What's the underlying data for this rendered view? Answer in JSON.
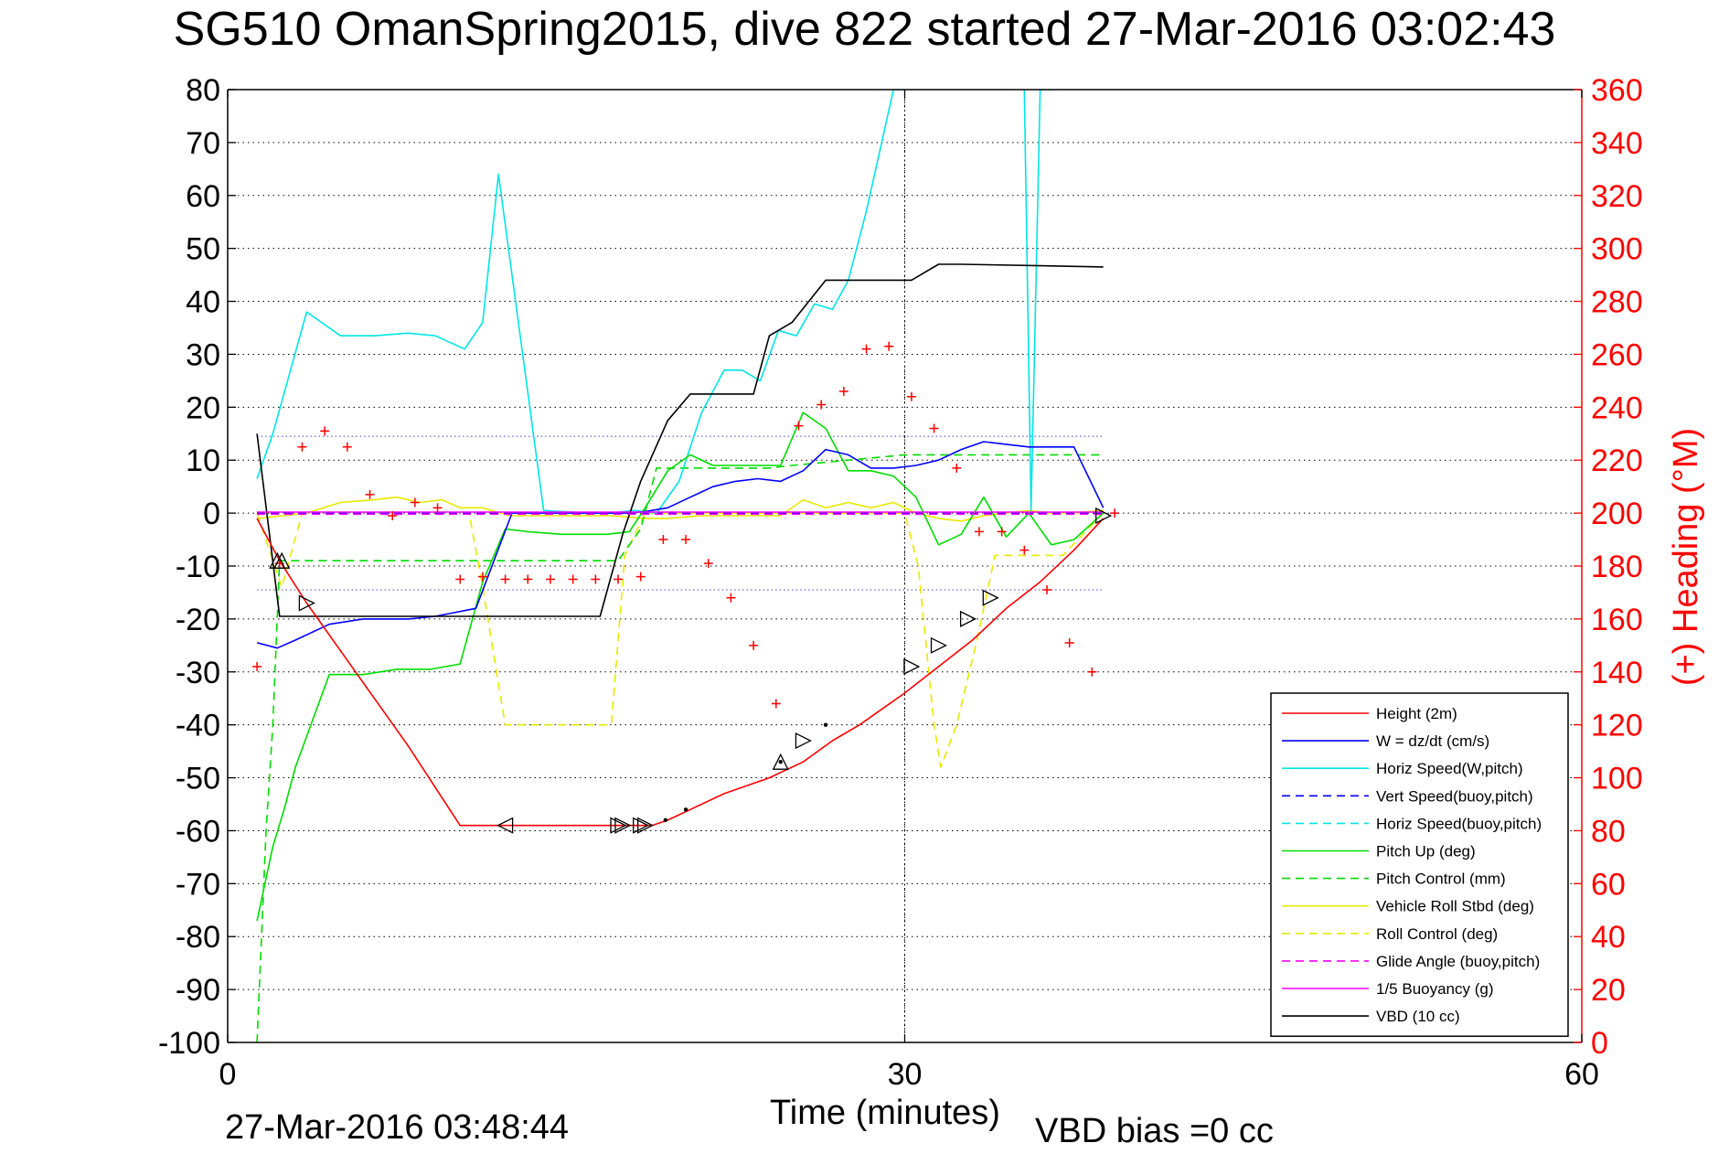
{
  "title": "SG510 OmanSpring2015, dive 822 started 27-Mar-2016 03:02:43",
  "footer": {
    "timestamp": "27-Mar-2016 03:48:44",
    "vbd_bias": "VBD bias =0 cc"
  },
  "chart_data": {
    "type": "line",
    "xlabel": "Time (minutes)",
    "ylabel": "",
    "y2label": "(+) Heading (°M)",
    "xlim": [
      0,
      60
    ],
    "ylim": [
      -100,
      80
    ],
    "y2lim": [
      0,
      360
    ],
    "xticks": [
      0,
      30,
      60
    ],
    "yticks": [
      -100,
      -90,
      -80,
      -70,
      -60,
      -50,
      -40,
      -30,
      -20,
      -10,
      0,
      10,
      20,
      30,
      40,
      50,
      60,
      70,
      80
    ],
    "y2ticks": [
      0,
      20,
      40,
      60,
      80,
      100,
      120,
      140,
      160,
      180,
      200,
      220,
      240,
      260,
      280,
      300,
      320,
      340,
      360
    ],
    "grid": true,
    "legend_position": "bottom-right",
    "colors": {
      "axes": "#000000",
      "right_axis": "#ff0000",
      "height": "#ff0000",
      "w": "#0000ff",
      "horiz_speed": "#00e5e5",
      "vert_speed_buoy": "#0000ff",
      "horiz_speed_buoy": "#00e5e5",
      "pitch_up": "#00dd00",
      "pitch_control": "#00dd00",
      "roll": "#e8e800",
      "roll_control": "#e8e800",
      "glide_angle": "#ff00ff",
      "buoyancy": "#ff00ff",
      "vbd": "#000000",
      "reference_lines": "#5555dd",
      "heading_markers": "#ff0000"
    },
    "series": [
      {
        "name": "Height (2m)",
        "key": "height",
        "style": "solid",
        "x": [
          1.3,
          2.3,
          3.5,
          6,
          8,
          10.3,
          12,
          14,
          16,
          17.5,
          18.8,
          19.5,
          20.5,
          22,
          24,
          25.5,
          26.8,
          28,
          30,
          31.5,
          33,
          34.5,
          36,
          37.5,
          38.8
        ],
        "y": [
          -1,
          -9,
          -17,
          -32,
          -44,
          -59,
          -59,
          -59,
          -59,
          -59,
          -59,
          -58,
          -56,
          -53,
          -50,
          -47,
          -43,
          -40,
          -34,
          -29,
          -24,
          -18,
          -13,
          -7,
          -1
        ]
      },
      {
        "name": "W = dz/dt (cm/s)",
        "key": "w",
        "style": "solid",
        "x": [
          1.3,
          2.2,
          3,
          4.5,
          6,
          8,
          9.2,
          11,
          12.6,
          13.5,
          15,
          16,
          17,
          17.8,
          18.5,
          19.5,
          20.5,
          21.5,
          22.5,
          23.5,
          24.5,
          25.5,
          26.5,
          27.5,
          28.5,
          29.5,
          30.5,
          31.5,
          32.5,
          33.5,
          34.5,
          35.5,
          36.5,
          37.5,
          38.8
        ],
        "y": [
          -24.5,
          -25.5,
          -24,
          -21,
          -20,
          -20,
          -19.5,
          -18,
          0,
          0,
          0,
          0,
          0,
          0,
          0.3,
          1,
          3,
          5,
          6,
          6.5,
          6,
          8,
          12,
          11,
          8.5,
          8.5,
          9,
          10,
          12,
          13.5,
          13,
          12.5,
          12.5,
          12.5,
          1
        ]
      },
      {
        "name": "Horiz Speed(W,pitch)",
        "key": "horiz_speed",
        "style": "solid",
        "x": [
          1.3,
          2,
          3.5,
          5,
          6.5,
          8,
          9.2,
          10.5,
          11.3,
          12,
          14,
          16,
          17,
          18,
          19,
          20,
          21,
          22,
          22.8,
          23.6,
          24.4,
          25.2,
          26,
          26.8,
          27.5,
          28.3,
          29.5,
          30
        ],
        "y": [
          6.5,
          15,
          38,
          33.5,
          33.5,
          34,
          33.5,
          31,
          36,
          64,
          0.5,
          0,
          0,
          0.5,
          0,
          6,
          19,
          27,
          27,
          25,
          34.5,
          33.5,
          39.5,
          38.5,
          44,
          57,
          80,
          80
        ]
      },
      {
        "name": "Horiz Speed(W,pitch) (2)",
        "key": "horiz_speed",
        "style": "solid",
        "legend": false,
        "x": [
          35.3,
          35.6,
          36,
          36.6
        ],
        "y": [
          80,
          0.5,
          80,
          80
        ]
      },
      {
        "name": "Vert Speed(buoy,pitch)",
        "key": "vert_speed_buoy",
        "style": "dashed",
        "x": [
          1.3,
          38.8
        ],
        "y": [
          0,
          0
        ]
      },
      {
        "name": "Horiz Speed(buoy,pitch)",
        "key": "horiz_speed_buoy",
        "style": "dashed",
        "x": [
          1.3,
          38.8
        ],
        "y": [
          0,
          0
        ]
      },
      {
        "name": "Pitch Up (deg)",
        "key": "pitch_up",
        "style": "solid",
        "x": [
          1.3,
          2,
          2.5,
          3,
          4.5,
          6,
          7.5,
          9,
          10.3,
          11.3,
          12.3,
          13.3,
          14.8,
          16.8,
          17.8,
          18.5,
          19.5,
          20.5,
          21.5,
          22.5,
          23.5,
          24.5,
          25.5,
          26.5,
          27.5,
          28.5,
          29.5,
          30.5,
          31.5,
          32.5,
          33.5,
          34.5,
          35.5,
          36.5,
          37.5,
          38.8
        ],
        "y": [
          -77,
          -63,
          -56,
          -48,
          -30.5,
          -30.5,
          -29.5,
          -29.5,
          -28.5,
          -13,
          -3,
          -3.5,
          -4,
          -4,
          -3.5,
          1,
          8,
          11,
          9,
          9,
          9,
          9,
          19,
          16,
          8,
          8,
          7,
          3,
          -6,
          -4,
          3,
          -4.5,
          0,
          -6,
          -5,
          0
        ]
      },
      {
        "name": "Pitch Control (mm)",
        "key": "pitch_control",
        "style": "dashed",
        "x": [
          1.3,
          1.7,
          2,
          2.3,
          4,
          10.3,
          11.3,
          16.5,
          17.3,
          18.3,
          19,
          20,
          22,
          24,
          25,
          30,
          31,
          38.8
        ],
        "y": [
          -100,
          -60,
          -40,
          -9,
          -9,
          -9,
          -9,
          -9,
          -9,
          -3,
          8.5,
          8.5,
          8.5,
          8.5,
          9,
          11,
          11,
          11
        ]
      },
      {
        "name": "Vehicle Roll Stbd (deg)",
        "key": "roll",
        "style": "solid",
        "x": [
          1.3,
          2.5,
          3.5,
          5,
          6.5,
          7.5,
          8.5,
          9.5,
          10.3,
          11.3,
          12.5,
          15,
          17,
          18.5,
          19.5,
          21,
          23,
          24.5,
          25.5,
          26.5,
          27.5,
          28.5,
          29.5,
          30.5,
          31.5,
          32.5,
          33.5,
          34.5,
          35.5,
          36.5,
          37.5,
          38.8
        ],
        "y": [
          -1,
          -0.5,
          0,
          2,
          2.5,
          3,
          2,
          2.5,
          1,
          1,
          -0.5,
          -0.5,
          -0.5,
          -1,
          -1,
          -0.5,
          -0.5,
          -0.5,
          2.5,
          1,
          2,
          1,
          2,
          0,
          -1,
          -1.5,
          -0.5,
          0,
          0.5,
          0,
          0,
          0.5
        ]
      },
      {
        "name": "Roll Control (deg)",
        "key": "roll_control",
        "style": "dashed",
        "x": [
          1.3,
          2.4,
          3.3,
          10.7,
          11.3,
          12.3,
          17,
          17.6,
          18.5,
          30,
          30.6,
          31.3,
          31.6,
          32.3,
          33.2,
          34,
          36,
          37,
          38.8
        ],
        "y": [
          0,
          -14,
          0,
          0,
          -14,
          -40,
          -40,
          -8,
          0,
          0,
          -10,
          -40,
          -48,
          -40,
          -24,
          -8,
          -8,
          -8,
          0
        ]
      },
      {
        "name": "Glide Angle (buoy,pitch)",
        "key": "glide_angle",
        "style": "dashed",
        "x": [
          1.3,
          38.8
        ],
        "y": [
          -0.2,
          -0.2
        ]
      },
      {
        "name": "1/5 Buoyancy (g)",
        "key": "buoyancy",
        "style": "solid",
        "x": [
          1.3,
          38.8
        ],
        "y": [
          0.2,
          0.2
        ]
      },
      {
        "name": "VBD (10 cc)",
        "key": "vbd",
        "style": "solid",
        "x": [
          1.3,
          2.3,
          16.5,
          17.5,
          18.3,
          19.5,
          20.5,
          23.3,
          24,
          25,
          26.5,
          30.3,
          31.5,
          32.5,
          38.8
        ],
        "y": [
          15,
          -19.5,
          -19.5,
          -4,
          6,
          17.5,
          22.5,
          22.5,
          33.5,
          36,
          44,
          44,
          47,
          47,
          46.5
        ]
      }
    ],
    "reference_lines": [
      {
        "y": 14.5,
        "x": [
          1.3,
          38.8
        ]
      },
      {
        "y": -14.5,
        "x": [
          1.3,
          38.8
        ]
      }
    ],
    "heading": {
      "x": [
        1.3,
        2.3,
        3.3,
        4.3,
        5.3,
        6.3,
        7.3,
        8.3,
        9.3,
        10.3,
        11.3,
        12.3,
        13.3,
        14.3,
        15.3,
        16.3,
        17.3,
        18.3,
        19.3,
        20.3,
        21.3,
        22.3,
        23.3,
        24.3,
        25.3,
        26.3,
        27.3,
        28.3,
        29.3,
        30.3,
        31.3,
        32.3,
        33.3,
        34.3,
        35.3,
        36.3,
        37.3,
        38.3,
        39.3
      ],
      "y": [
        142,
        181,
        225,
        231,
        225,
        207,
        199,
        204,
        202,
        175,
        176,
        175,
        175,
        175,
        175,
        175,
        175,
        176,
        190,
        190,
        181,
        168,
        150,
        128,
        233,
        241,
        246,
        262,
        263,
        244,
        232,
        217,
        193,
        193,
        186,
        171,
        151,
        140,
        200
      ]
    },
    "markers": {
      "triangles": [
        {
          "x": 2.2,
          "y": -9,
          "dir": "up"
        },
        {
          "x": 2.4,
          "y": -9,
          "dir": "up"
        },
        {
          "x": 3.5,
          "y": -17,
          "dir": "right"
        },
        {
          "x": 12.3,
          "y": -59,
          "dir": "left"
        },
        {
          "x": 17.3,
          "y": -59,
          "dir": "right"
        },
        {
          "x": 17.5,
          "y": -59,
          "dir": "right"
        },
        {
          "x": 18.3,
          "y": -59,
          "dir": "right"
        },
        {
          "x": 18.5,
          "y": -59,
          "dir": "right"
        },
        {
          "x": 24.5,
          "y": -47,
          "dir": "up"
        },
        {
          "x": 25.5,
          "y": -43,
          "dir": "right"
        },
        {
          "x": 30.3,
          "y": -29,
          "dir": "right"
        },
        {
          "x": 31.5,
          "y": -25,
          "dir": "right"
        },
        {
          "x": 32.8,
          "y": -20,
          "dir": "right"
        },
        {
          "x": 33.8,
          "y": -16,
          "dir": "right"
        },
        {
          "x": 38.8,
          "y": -0.5,
          "dir": "right"
        }
      ],
      "dots": [
        {
          "x": 19.4,
          "y": -58
        },
        {
          "x": 20.3,
          "y": -56
        },
        {
          "x": 24.5,
          "y": -47
        },
        {
          "x": 26.5,
          "y": -40
        }
      ]
    },
    "cursor_line": {
      "x": 30
    }
  }
}
